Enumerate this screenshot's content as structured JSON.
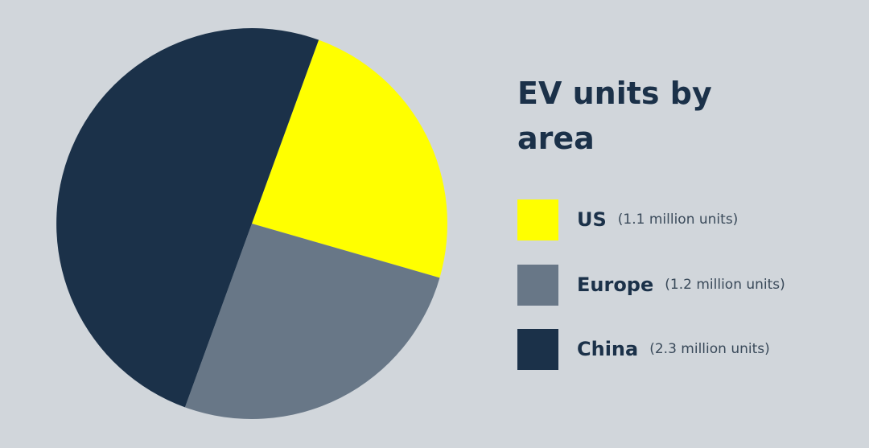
{
  "chart_data": {
    "type": "pie",
    "title": "EV units by area",
    "categories": [
      "US",
      "Europe",
      "China"
    ],
    "values": [
      1.1,
      1.2,
      2.3
    ],
    "unit": "million units",
    "colors": [
      "#ffff00",
      "#687787",
      "#1b3149"
    ],
    "legend": {
      "position": "right",
      "items": [
        {
          "label": "US",
          "detail": "(1.1 million units)",
          "color": "#ffff00"
        },
        {
          "label": "Europe",
          "detail": "(1.2 million units)",
          "color": "#687787"
        },
        {
          "label": "China",
          "detail": "(2.3 million units)",
          "color": "#1b3149"
        }
      ]
    }
  },
  "background": "#d1d6db"
}
